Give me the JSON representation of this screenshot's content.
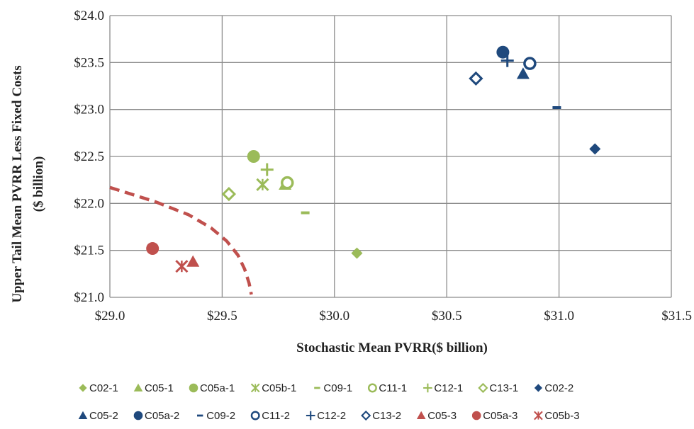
{
  "chart_data": {
    "type": "scatter",
    "title": "",
    "xlabel": "Stochastic Mean PVRR($ billion)",
    "ylabel_line1": "Upper Tail Mean PVRR Less Fixed Costs",
    "ylabel_line2": "($ billion)",
    "xlim": [
      29.0,
      31.5
    ],
    "ylim": [
      21.0,
      24.0
    ],
    "x_ticks": [
      29.0,
      29.5,
      30.0,
      30.5,
      31.0,
      31.5
    ],
    "x_tick_labels": [
      "$29.0",
      "$29.5",
      "$30.0",
      "$30.5",
      "$31.0",
      "$31.5"
    ],
    "y_ticks": [
      21.0,
      21.5,
      22.0,
      22.5,
      23.0,
      23.5,
      24.0
    ],
    "y_tick_labels": [
      "$21.0",
      "$21.5",
      "$22.0",
      "$22.5",
      "$23.0",
      "$23.5",
      "$24.0"
    ],
    "grid": true,
    "legend_position": "bottom",
    "colors": {
      "green": "#9bbb59",
      "blue": "#1f497d",
      "red": "#c0504d"
    },
    "series": [
      {
        "name": "C02-1",
        "marker": "diamond",
        "color": "#9bbb59",
        "x": 30.1,
        "y": 21.47
      },
      {
        "name": "C05-1",
        "marker": "triangle",
        "color": "#9bbb59",
        "x": 29.78,
        "y": 22.2
      },
      {
        "name": "C05a-1",
        "marker": "circle",
        "color": "#9bbb59",
        "x": 29.64,
        "y": 22.5
      },
      {
        "name": "C05b-1",
        "marker": "asterisk",
        "color": "#9bbb59",
        "x": 29.68,
        "y": 22.2
      },
      {
        "name": "C09-1",
        "marker": "dash",
        "color": "#9bbb59",
        "x": 29.87,
        "y": 21.9
      },
      {
        "name": "C11-1",
        "marker": "open-circle",
        "color": "#9bbb59",
        "x": 29.79,
        "y": 22.22
      },
      {
        "name": "C12-1",
        "marker": "plus",
        "color": "#9bbb59",
        "x": 29.7,
        "y": 22.36
      },
      {
        "name": "C13-1",
        "marker": "open-diamond",
        "color": "#9bbb59",
        "x": 29.53,
        "y": 22.1
      },
      {
        "name": "C02-2",
        "marker": "diamond",
        "color": "#1f497d",
        "x": 31.16,
        "y": 22.58
      },
      {
        "name": "C05-2",
        "marker": "triangle",
        "color": "#1f497d",
        "x": 30.84,
        "y": 23.38
      },
      {
        "name": "C05a-2",
        "marker": "circle",
        "color": "#1f497d",
        "x": 30.75,
        "y": 23.61
      },
      {
        "name": "C09-2",
        "marker": "dash",
        "color": "#1f497d",
        "x": 30.99,
        "y": 23.02
      },
      {
        "name": "C11-2",
        "marker": "open-circle",
        "color": "#1f497d",
        "x": 30.87,
        "y": 23.49
      },
      {
        "name": "C12-2",
        "marker": "plus",
        "color": "#1f497d",
        "x": 30.77,
        "y": 23.52
      },
      {
        "name": "C13-2",
        "marker": "open-diamond",
        "color": "#1f497d",
        "x": 30.63,
        "y": 23.33
      },
      {
        "name": "C05-3",
        "marker": "triangle",
        "color": "#c0504d",
        "x": 29.37,
        "y": 21.38
      },
      {
        "name": "C05a-3",
        "marker": "circle",
        "color": "#c0504d",
        "x": 29.19,
        "y": 21.52
      },
      {
        "name": "C05b-3",
        "marker": "asterisk",
        "color": "#c0504d",
        "x": 29.32,
        "y": 21.33
      }
    ],
    "frontier_curve": {
      "color": "#c0504d",
      "style": "dashed",
      "x": [
        29.0,
        29.2,
        29.35,
        29.45,
        29.52,
        29.57,
        29.6,
        29.62,
        29.63
      ],
      "y": [
        22.17,
        22.02,
        21.88,
        21.74,
        21.6,
        21.45,
        21.3,
        21.15,
        21.03
      ]
    }
  }
}
